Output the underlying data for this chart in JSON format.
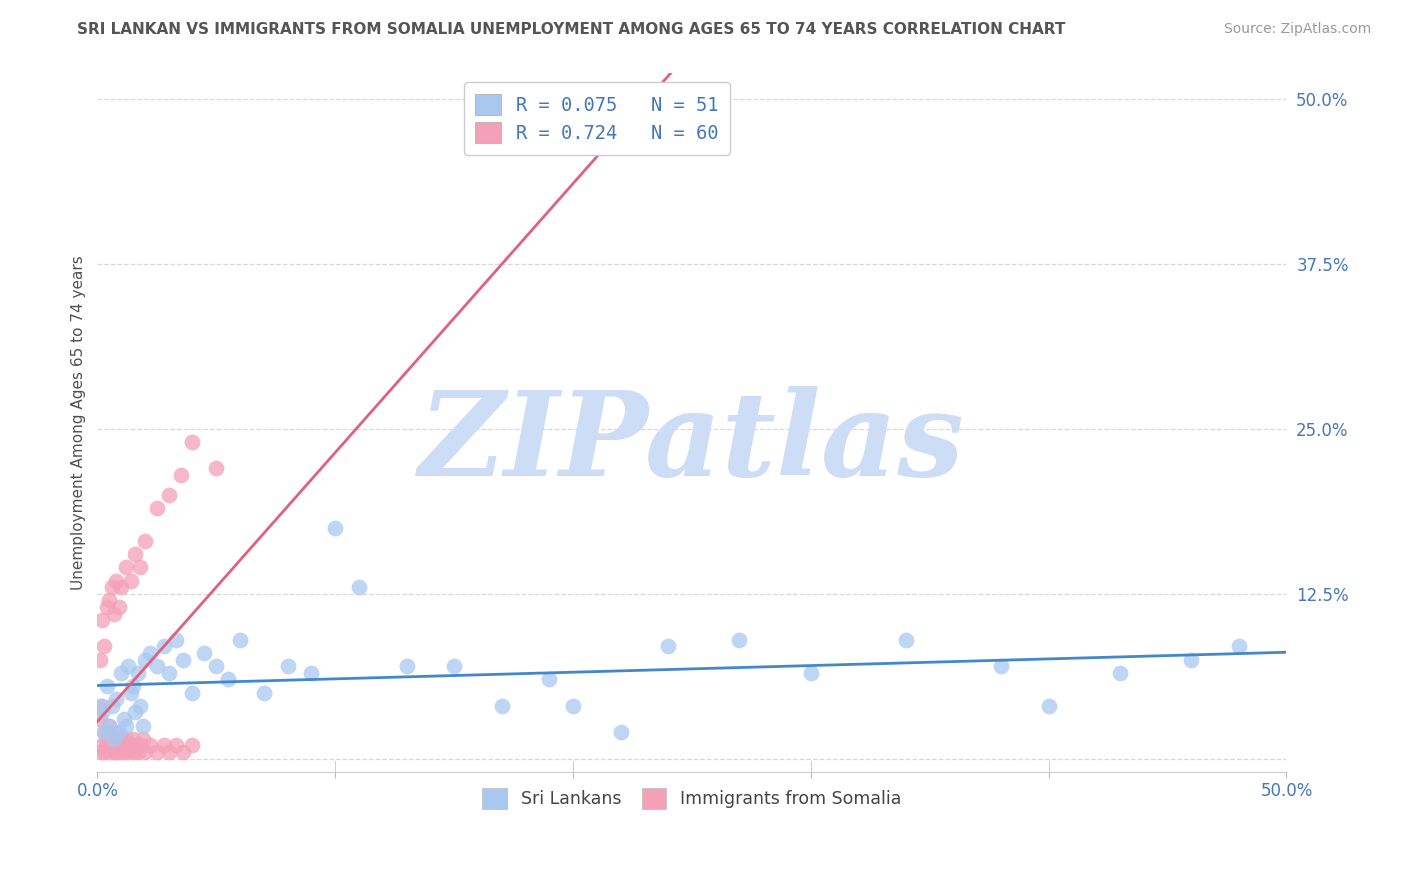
{
  "title": "SRI LANKAN VS IMMIGRANTS FROM SOMALIA UNEMPLOYMENT AMONG AGES 65 TO 74 YEARS CORRELATION CHART",
  "source": "Source: ZipAtlas.com",
  "ylabel": "Unemployment Among Ages 65 to 74 years",
  "xlim": [
    0.0,
    0.5
  ],
  "ylim": [
    -0.01,
    0.52
  ],
  "xtick_positions": [
    0.0,
    0.1,
    0.2,
    0.3,
    0.4,
    0.5
  ],
  "xtick_labels": [
    "0.0%",
    "",
    "",
    "",
    "",
    "50.0%"
  ],
  "ytick_positions": [
    0.0,
    0.125,
    0.25,
    0.375,
    0.5
  ],
  "ytick_labels": [
    "",
    "12.5%",
    "25.0%",
    "37.5%",
    "50.0%"
  ],
  "sri_lankan_R": 0.075,
  "sri_lankan_N": 51,
  "somalia_R": 0.724,
  "somalia_N": 60,
  "sri_lankan_color": "#a8c8f0",
  "somalia_color": "#f4a0b8",
  "sri_lankan_line_color": "#4488cc",
  "somalia_line_color": "#e06080",
  "legend_text_color": "#4477bb",
  "title_color": "#555555",
  "source_color": "#999999",
  "grid_color": "#d8d8d8",
  "watermark_color": "#ccddf5",
  "watermark": "ZIPatlas",
  "sri_lankan_x": [
    0.001,
    0.002,
    0.003,
    0.004,
    0.005,
    0.006,
    0.007,
    0.008,
    0.009,
    0.01,
    0.011,
    0.012,
    0.013,
    0.014,
    0.015,
    0.016,
    0.017,
    0.018,
    0.019,
    0.02,
    0.022,
    0.025,
    0.028,
    0.03,
    0.033,
    0.036,
    0.04,
    0.045,
    0.05,
    0.055,
    0.06,
    0.07,
    0.08,
    0.09,
    0.1,
    0.11,
    0.13,
    0.15,
    0.17,
    0.19,
    0.2,
    0.22,
    0.24,
    0.27,
    0.3,
    0.34,
    0.38,
    0.4,
    0.43,
    0.46,
    0.48
  ],
  "sri_lankan_y": [
    0.04,
    0.035,
    0.02,
    0.055,
    0.025,
    0.04,
    0.015,
    0.045,
    0.02,
    0.065,
    0.03,
    0.025,
    0.07,
    0.05,
    0.055,
    0.035,
    0.065,
    0.04,
    0.025,
    0.075,
    0.08,
    0.07,
    0.085,
    0.065,
    0.09,
    0.075,
    0.05,
    0.08,
    0.07,
    0.06,
    0.09,
    0.05,
    0.07,
    0.065,
    0.175,
    0.13,
    0.07,
    0.07,
    0.04,
    0.06,
    0.04,
    0.02,
    0.085,
    0.09,
    0.065,
    0.09,
    0.07,
    0.04,
    0.065,
    0.075,
    0.085
  ],
  "somalia_x": [
    0.001,
    0.001,
    0.002,
    0.002,
    0.003,
    0.003,
    0.004,
    0.004,
    0.005,
    0.005,
    0.006,
    0.006,
    0.007,
    0.007,
    0.008,
    0.008,
    0.009,
    0.009,
    0.01,
    0.01,
    0.011,
    0.011,
    0.012,
    0.012,
    0.013,
    0.014,
    0.015,
    0.015,
    0.016,
    0.017,
    0.018,
    0.019,
    0.02,
    0.022,
    0.025,
    0.028,
    0.03,
    0.033,
    0.036,
    0.04,
    0.001,
    0.002,
    0.003,
    0.004,
    0.005,
    0.006,
    0.007,
    0.008,
    0.009,
    0.01,
    0.012,
    0.014,
    0.016,
    0.018,
    0.02,
    0.025,
    0.03,
    0.035,
    0.04,
    0.05
  ],
  "somalia_y": [
    0.005,
    0.03,
    0.01,
    0.04,
    0.005,
    0.02,
    0.01,
    0.015,
    0.005,
    0.025,
    0.01,
    0.015,
    0.005,
    0.02,
    0.01,
    0.005,
    0.015,
    0.01,
    0.005,
    0.015,
    0.01,
    0.005,
    0.015,
    0.01,
    0.005,
    0.01,
    0.005,
    0.015,
    0.01,
    0.005,
    0.01,
    0.015,
    0.005,
    0.01,
    0.005,
    0.01,
    0.005,
    0.01,
    0.005,
    0.01,
    0.075,
    0.105,
    0.085,
    0.115,
    0.12,
    0.13,
    0.11,
    0.135,
    0.115,
    0.13,
    0.145,
    0.135,
    0.155,
    0.145,
    0.165,
    0.19,
    0.2,
    0.215,
    0.24,
    0.22
  ]
}
